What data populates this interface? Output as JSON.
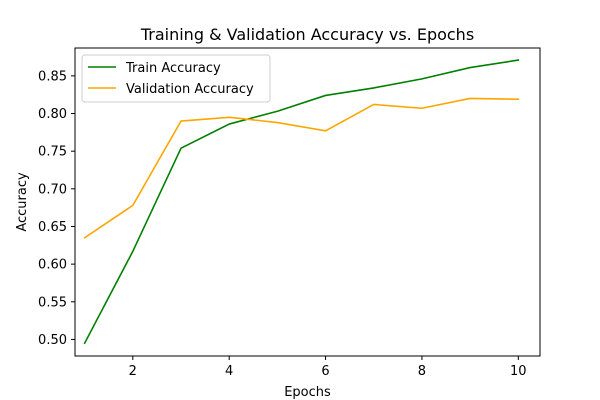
{
  "chart_data": {
    "type": "line",
    "title": "Training & Validation Accuracy vs. Epochs",
    "xlabel": "Epochs",
    "ylabel": "Accuracy",
    "x": [
      1,
      2,
      3,
      4,
      5,
      6,
      7,
      8,
      9,
      10
    ],
    "xlim": [
      0.8,
      10.45
    ],
    "ylim": [
      0.478,
      0.887
    ],
    "xticks": [
      2,
      4,
      6,
      8,
      10
    ],
    "xtick_labels": [
      "2",
      "4",
      "6",
      "8",
      "10"
    ],
    "yticks": [
      0.5,
      0.55,
      0.6,
      0.65,
      0.7,
      0.75,
      0.8,
      0.85
    ],
    "ytick_labels": [
      "0.50",
      "0.55",
      "0.60",
      "0.65",
      "0.70",
      "0.75",
      "0.80",
      "0.85"
    ],
    "grid": false,
    "legend_position": "top-left",
    "series": [
      {
        "name": "Train Accuracy",
        "color": "#008000",
        "values": [
          0.495,
          0.617,
          0.754,
          0.786,
          0.803,
          0.824,
          0.834,
          0.846,
          0.861,
          0.871
        ]
      },
      {
        "name": "Validation Accuracy",
        "color": "#ffa500",
        "values": [
          0.635,
          0.678,
          0.79,
          0.795,
          0.788,
          0.777,
          0.812,
          0.807,
          0.82,
          0.819
        ]
      }
    ]
  }
}
